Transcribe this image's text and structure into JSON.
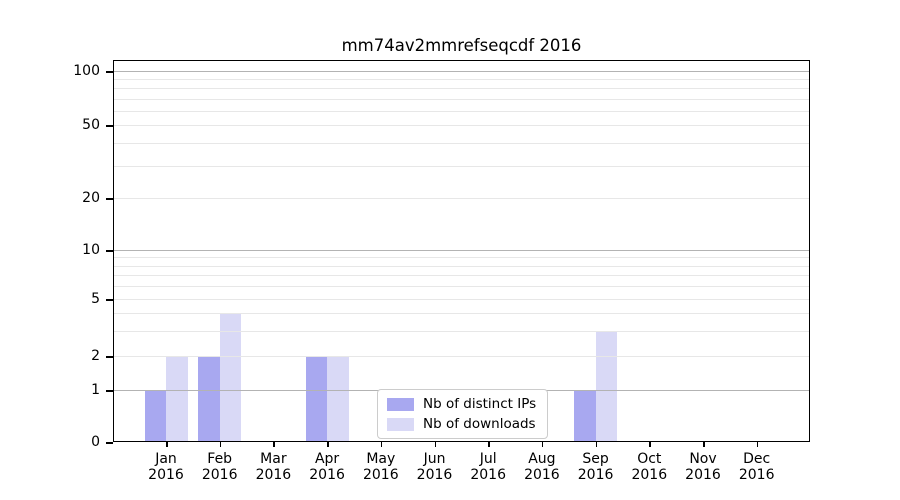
{
  "title": "mm74av2mmrefseqcdf 2016",
  "chart_data": {
    "type": "bar",
    "title": "mm74av2mmrefseqcdf 2016",
    "x_categories": [
      "Jan 2016",
      "Feb 2016",
      "Mar 2016",
      "Apr 2016",
      "May 2016",
      "Jun 2016",
      "Jul 2016",
      "Aug 2016",
      "Sep 2016",
      "Oct 2016",
      "Nov 2016",
      "Dec 2016"
    ],
    "series": [
      {
        "name": "Nb of distinct IPs",
        "color": "#a8a8f0",
        "values": [
          1,
          2,
          0,
          2,
          0,
          0,
          0,
          0,
          1,
          0,
          0,
          0
        ]
      },
      {
        "name": "Nb of downloads",
        "color": "#d9d9f6",
        "values": [
          2,
          4,
          0,
          2,
          0,
          0,
          0,
          0,
          3,
          0,
          0,
          0
        ]
      }
    ],
    "yscale": "symlog",
    "ylim": [
      0,
      120
    ],
    "yticks": [
      0,
      1,
      2,
      5,
      10,
      20,
      50,
      100
    ],
    "minor_gridline_values": [
      2,
      3,
      4,
      5,
      6,
      7,
      8,
      9,
      20,
      30,
      40,
      50,
      60,
      70,
      80,
      90
    ],
    "major_gridline_values": [
      1,
      10,
      100
    ],
    "grid": "both",
    "legend": {
      "entries": [
        "Nb of distinct IPs",
        "Nb of downloads"
      ],
      "position": "lower-center-inside"
    },
    "colors": {
      "major_grid": "#b3b3b3",
      "minor_grid": "#e7e7e7",
      "axis": "#000000",
      "background": "#ffffff"
    }
  }
}
